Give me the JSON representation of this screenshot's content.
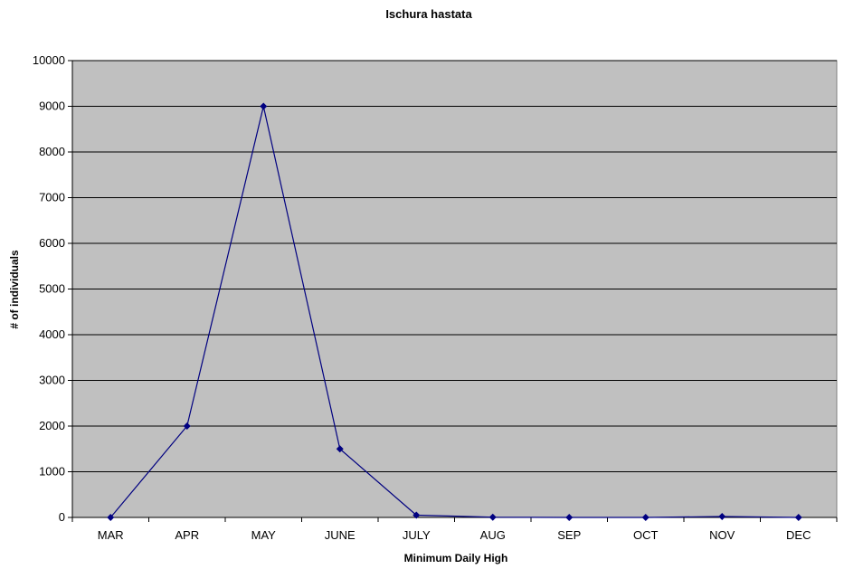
{
  "chart_data": {
    "type": "line",
    "title": "Ischura hastata",
    "xlabel": "Minimum Daily High",
    "ylabel": "# of individuals",
    "categories": [
      "MAR",
      "APR",
      "MAY",
      "JUNE",
      "JULY",
      "AUG",
      "SEP",
      "OCT",
      "NOV",
      "DEC"
    ],
    "series": [
      {
        "values": [
          0,
          2000,
          9000,
          1500,
          50,
          5,
          0,
          0,
          20,
          0
        ]
      }
    ],
    "ylim": [
      0,
      10000
    ],
    "yticks": [
      0,
      1000,
      2000,
      3000,
      4000,
      5000,
      6000,
      7000,
      8000,
      9000,
      10000
    ],
    "grid": true,
    "legend": "none",
    "colors": {
      "plot_background": "#c0c0c0",
      "series": "#000080",
      "gridline": "#000000"
    }
  }
}
